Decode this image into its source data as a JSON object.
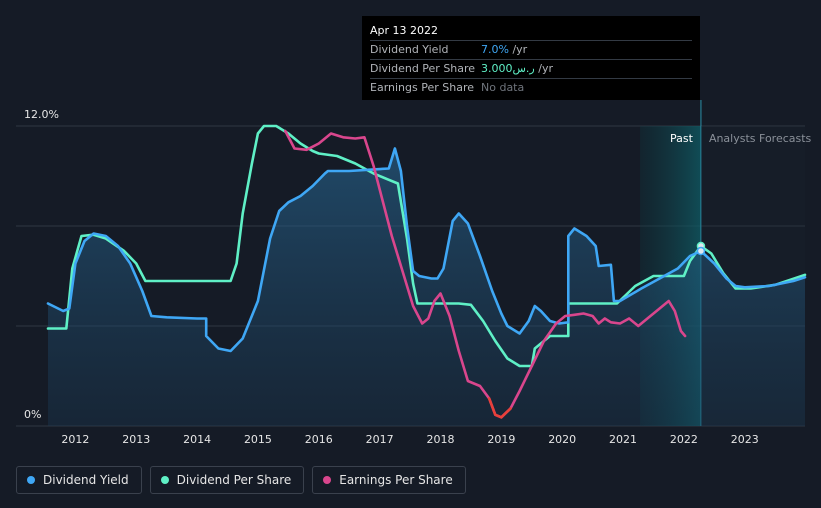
{
  "tooltip": {
    "date": "Apr 13 2022",
    "rows": [
      {
        "name": "Dividend Yield",
        "value": "7.0%",
        "unit": " /yr"
      },
      {
        "name": "Dividend Per Share",
        "value": "3.000ر.س",
        "unit": " /yr"
      },
      {
        "name": "Earnings Per Share",
        "value": "No data",
        "unit": ""
      }
    ]
  },
  "legend": [
    {
      "label": "Dividend Yield",
      "color": "#3fa7f5"
    },
    {
      "label": "Dividend Per Share",
      "color": "#5ff0c6"
    },
    {
      "label": "Earnings Per Share",
      "color": "#d9468d"
    }
  ],
  "chart_data": {
    "type": "line",
    "x_range": [
      2011.55,
      2023.99
    ],
    "y_range": [
      0,
      12
    ],
    "y_top_label": "12.0%",
    "y_bottom_label": "0%",
    "x_ticks": [
      "2012",
      "2013",
      "2014",
      "2015",
      "2016",
      "2017",
      "2018",
      "2019",
      "2020",
      "2021",
      "2022",
      "2023"
    ],
    "regions": {
      "past_label": "Past",
      "forecast_label": "Analysts Forecasts",
      "past_band_start": 2021.28,
      "divider": 2022.28
    },
    "series": [
      {
        "name": "Dividend Yield",
        "color": "#3fa7f5",
        "unit": "%",
        "points": [
          [
            2011.55,
            4.9
          ],
          [
            2011.8,
            4.6
          ],
          [
            2011.9,
            4.7
          ],
          [
            2012.0,
            6.5
          ],
          [
            2012.15,
            7.4
          ],
          [
            2012.3,
            7.7
          ],
          [
            2012.5,
            7.6
          ],
          [
            2012.7,
            7.2
          ],
          [
            2012.9,
            6.5
          ],
          [
            2013.1,
            5.4
          ],
          [
            2013.25,
            4.4
          ],
          [
            2013.5,
            4.35
          ],
          [
            2014.0,
            4.3
          ],
          [
            2014.15,
            4.3
          ],
          [
            2014.15,
            3.6
          ],
          [
            2014.35,
            3.1
          ],
          [
            2014.55,
            3.0
          ],
          [
            2014.75,
            3.5
          ],
          [
            2015.0,
            5.0
          ],
          [
            2015.2,
            7.5
          ],
          [
            2015.35,
            8.6
          ],
          [
            2015.5,
            8.95
          ],
          [
            2015.7,
            9.2
          ],
          [
            2015.9,
            9.6
          ],
          [
            2016.1,
            10.1
          ],
          [
            2016.15,
            10.2
          ],
          [
            2016.5,
            10.2
          ],
          [
            2016.8,
            10.25
          ],
          [
            2017.15,
            10.3
          ],
          [
            2017.25,
            11.1
          ],
          [
            2017.35,
            10.2
          ],
          [
            2017.45,
            8.0
          ],
          [
            2017.55,
            6.2
          ],
          [
            2017.65,
            6.0
          ],
          [
            2017.85,
            5.9
          ],
          [
            2017.95,
            5.9
          ],
          [
            2018.05,
            6.3
          ],
          [
            2018.2,
            8.2
          ],
          [
            2018.3,
            8.5
          ],
          [
            2018.45,
            8.1
          ],
          [
            2018.65,
            6.8
          ],
          [
            2018.85,
            5.4
          ],
          [
            2019.0,
            4.5
          ],
          [
            2019.1,
            4.0
          ],
          [
            2019.3,
            3.7
          ],
          [
            2019.45,
            4.2
          ],
          [
            2019.55,
            4.8
          ],
          [
            2019.65,
            4.6
          ],
          [
            2019.8,
            4.2
          ],
          [
            2019.95,
            4.1
          ],
          [
            2020.1,
            4.15
          ],
          [
            2020.1,
            7.6
          ],
          [
            2020.2,
            7.9
          ],
          [
            2020.4,
            7.6
          ],
          [
            2020.55,
            7.2
          ],
          [
            2020.6,
            6.4
          ],
          [
            2020.8,
            6.45
          ],
          [
            2020.85,
            5.0
          ],
          [
            2020.95,
            5.0
          ],
          [
            2021.3,
            5.5
          ],
          [
            2021.6,
            5.9
          ],
          [
            2021.9,
            6.3
          ],
          [
            2022.1,
            6.8
          ],
          [
            2022.28,
            7.0
          ],
          [
            2022.5,
            6.5
          ],
          [
            2022.7,
            5.9
          ],
          [
            2022.85,
            5.6
          ],
          [
            2023.0,
            5.55
          ],
          [
            2023.4,
            5.6
          ],
          [
            2023.8,
            5.8
          ],
          [
            2023.99,
            5.95
          ]
        ]
      },
      {
        "name": "Dividend Per Share",
        "color": "#5ff0c6",
        "unit": "SAR",
        "points": [
          [
            2011.55,
            3.9
          ],
          [
            2011.85,
            3.9
          ],
          [
            2011.95,
            6.3
          ],
          [
            2012.1,
            7.6
          ],
          [
            2012.3,
            7.65
          ],
          [
            2012.5,
            7.5
          ],
          [
            2012.8,
            7.0
          ],
          [
            2013.0,
            6.5
          ],
          [
            2013.15,
            5.8
          ],
          [
            2013.5,
            5.8
          ],
          [
            2014.0,
            5.8
          ],
          [
            2014.55,
            5.8
          ],
          [
            2014.65,
            6.5
          ],
          [
            2014.75,
            8.5
          ],
          [
            2014.9,
            10.5
          ],
          [
            2015.0,
            11.7
          ],
          [
            2015.1,
            12.0
          ],
          [
            2015.3,
            12.0
          ],
          [
            2015.5,
            11.7
          ],
          [
            2015.7,
            11.3
          ],
          [
            2015.9,
            11.0
          ],
          [
            2016.0,
            10.9
          ],
          [
            2016.3,
            10.8
          ],
          [
            2016.6,
            10.5
          ],
          [
            2016.9,
            10.1
          ],
          [
            2017.15,
            9.85
          ],
          [
            2017.3,
            9.7
          ],
          [
            2017.45,
            7.5
          ],
          [
            2017.55,
            5.7
          ],
          [
            2017.62,
            4.9
          ],
          [
            2018.0,
            4.9
          ],
          [
            2018.3,
            4.9
          ],
          [
            2018.5,
            4.85
          ],
          [
            2018.7,
            4.2
          ],
          [
            2018.9,
            3.4
          ],
          [
            2019.1,
            2.7
          ],
          [
            2019.3,
            2.4
          ],
          [
            2019.5,
            2.4
          ],
          [
            2019.55,
            3.1
          ],
          [
            2019.8,
            3.6
          ],
          [
            2020.0,
            3.6
          ],
          [
            2020.1,
            3.6
          ],
          [
            2020.1,
            4.9
          ],
          [
            2020.4,
            4.9
          ],
          [
            2020.85,
            4.9
          ],
          [
            2020.9,
            4.9
          ],
          [
            2021.2,
            5.6
          ],
          [
            2021.5,
            6.0
          ],
          [
            2021.8,
            6.0
          ],
          [
            2022.0,
            6.0
          ],
          [
            2022.1,
            6.6
          ],
          [
            2022.28,
            7.2
          ],
          [
            2022.45,
            6.9
          ],
          [
            2022.65,
            6.1
          ],
          [
            2022.85,
            5.5
          ],
          [
            2023.1,
            5.5
          ],
          [
            2023.5,
            5.65
          ],
          [
            2023.99,
            6.05
          ]
        ]
      },
      {
        "name": "Earnings Per Share",
        "color": "#d9468d",
        "unit": "SAR",
        "points": [
          [
            2015.45,
            11.8
          ],
          [
            2015.6,
            11.1
          ],
          [
            2015.8,
            11.05
          ],
          [
            2016.0,
            11.3
          ],
          [
            2016.2,
            11.7
          ],
          [
            2016.4,
            11.55
          ],
          [
            2016.6,
            11.5
          ],
          [
            2016.75,
            11.55
          ],
          [
            2016.9,
            10.4
          ],
          [
            2017.05,
            9.0
          ],
          [
            2017.2,
            7.6
          ],
          [
            2017.4,
            6.0
          ],
          [
            2017.55,
            4.8
          ],
          [
            2017.7,
            4.1
          ],
          [
            2017.8,
            4.3
          ],
          [
            2017.9,
            5.0
          ],
          [
            2018.0,
            5.3
          ],
          [
            2018.15,
            4.4
          ],
          [
            2018.3,
            3.0
          ],
          [
            2018.45,
            1.8
          ],
          [
            2018.65,
            1.6
          ],
          [
            2018.8,
            1.1
          ],
          [
            2018.9,
            0.45
          ],
          [
            2019.0,
            0.35
          ],
          [
            2019.15,
            0.7
          ],
          [
            2019.3,
            1.4
          ],
          [
            2019.5,
            2.4
          ],
          [
            2019.7,
            3.4
          ],
          [
            2019.9,
            4.1
          ],
          [
            2020.05,
            4.4
          ],
          [
            2020.2,
            4.45
          ],
          [
            2020.35,
            4.5
          ],
          [
            2020.5,
            4.4
          ],
          [
            2020.6,
            4.1
          ],
          [
            2020.7,
            4.3
          ],
          [
            2020.8,
            4.15
          ],
          [
            2020.95,
            4.1
          ],
          [
            2021.1,
            4.3
          ],
          [
            2021.25,
            4.0
          ],
          [
            2021.4,
            4.3
          ],
          [
            2021.6,
            4.7
          ],
          [
            2021.75,
            5.0
          ],
          [
            2021.85,
            4.6
          ],
          [
            2021.95,
            3.8
          ],
          [
            2022.02,
            3.6
          ]
        ]
      }
    ]
  }
}
